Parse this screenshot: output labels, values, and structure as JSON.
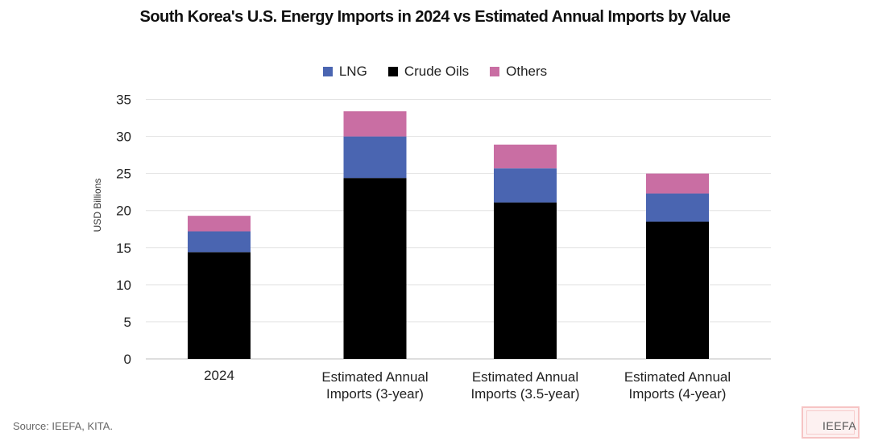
{
  "title": "South Korea's U.S. Energy Imports in 2024 vs Estimated Annual Imports by Value",
  "source": "Source: IEEFA, KITA.",
  "logo": "IEEFA",
  "chart_data": {
    "type": "bar",
    "stacked": true,
    "title": "South Korea's U.S. Energy Imports in 2024 vs Estimated Annual Imports by Value",
    "xlabel": "",
    "ylabel": "USD Billions",
    "ylim": [
      0,
      35
    ],
    "yticks": [
      0,
      5,
      10,
      15,
      20,
      25,
      30,
      35
    ],
    "grid": true,
    "legend_position": "top-center",
    "categories": [
      [
        "2024"
      ],
      [
        "Estimated Annual",
        "Imports (3-year)"
      ],
      [
        "Estimated Annual",
        "Imports (3.5-year)"
      ],
      [
        "Estimated Annual",
        "Imports (4-year)"
      ]
    ],
    "legend": [
      {
        "name": "LNG",
        "color": "#4a65b1"
      },
      {
        "name": "Crude Oils",
        "color": "#000000"
      },
      {
        "name": "Others",
        "color": "#c96ea3"
      }
    ],
    "series": [
      {
        "name": "Crude Oils",
        "color": "#000000",
        "values": [
          14.4,
          24.4,
          21.1,
          18.5
        ]
      },
      {
        "name": "LNG",
        "color": "#4a65b1",
        "values": [
          2.8,
          5.6,
          4.6,
          3.8
        ]
      },
      {
        "name": "Others",
        "color": "#c96ea3",
        "values": [
          2.1,
          3.4,
          3.2,
          2.7
        ]
      }
    ]
  }
}
